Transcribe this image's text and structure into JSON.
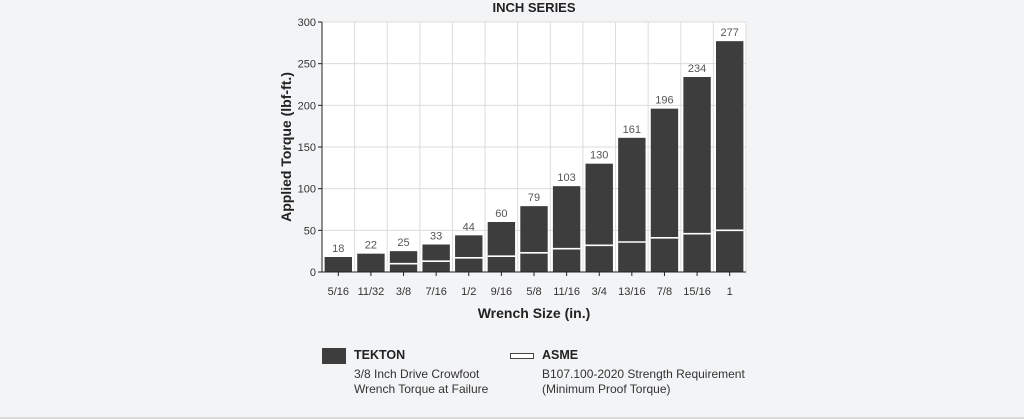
{
  "chart_data": {
    "type": "bar",
    "title": "INCH SERIES",
    "xlabel": "Wrench Size (in.)",
    "ylabel": "Applied Torque (lbf-ft.)",
    "ylim": [
      0,
      300
    ],
    "yticks": [
      0,
      50,
      100,
      150,
      200,
      250,
      300
    ],
    "grid": true,
    "categories": [
      "5/16",
      "11/32",
      "3/8",
      "7/16",
      "1/2",
      "9/16",
      "5/8",
      "11/16",
      "3/4",
      "13/16",
      "7/8",
      "15/16",
      "1"
    ],
    "series": [
      {
        "name": "TEKTON",
        "values": [
          18,
          22,
          25,
          33,
          44,
          60,
          79,
          103,
          130,
          161,
          196,
          234,
          277
        ],
        "color": "#3d3d3d"
      },
      {
        "name": "ASME",
        "values": [
          null,
          null,
          10,
          13,
          17,
          19,
          23,
          28,
          32,
          36,
          41,
          46,
          50
        ],
        "color": "#ffffff"
      }
    ]
  },
  "legend": {
    "tekton": {
      "name": "TEKTON",
      "line1": "3/8 Inch Drive Crowfoot",
      "line2": "Wrench Torque at Failure"
    },
    "asme": {
      "name": "ASME",
      "line1": "B107.100-2020 Strength Requirement",
      "line2": "(Minimum Proof Torque)"
    }
  }
}
